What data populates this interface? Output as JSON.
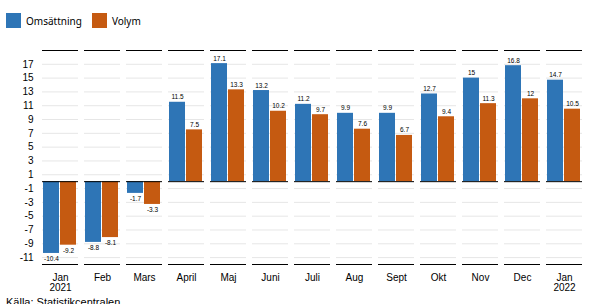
{
  "chart_data": {
    "type": "bar",
    "categories": [
      "Jan\n2021",
      "Feb",
      "Mars",
      "April",
      "Maj",
      "Juni",
      "Juli",
      "Aug",
      "Sept",
      "Okt",
      "Nov",
      "Dec",
      "Jan\n2022"
    ],
    "series": [
      {
        "name": "Omsättning",
        "color": "#2e75b6",
        "values": [
          -10.4,
          -8.8,
          -1.7,
          11.5,
          17.1,
          13.2,
          11.2,
          9.9,
          9.9,
          12.7,
          15.0,
          16.8,
          14.7
        ]
      },
      {
        "name": "Volym",
        "color": "#c55a11",
        "values": [
          -9.2,
          -8.1,
          -3.3,
          7.5,
          13.3,
          10.2,
          9.7,
          7.6,
          6.7,
          9.4,
          11.3,
          12.0,
          10.5
        ]
      }
    ],
    "ylim": [
      -12,
      19
    ],
    "yticks": [
      -11,
      -9,
      -7,
      -5,
      -3,
      -1,
      1,
      3,
      5,
      7,
      9,
      11,
      13,
      15,
      17
    ],
    "grid": true,
    "legend": "top-left",
    "data_labels": true,
    "caption": "Källa: Statistikcentralen"
  }
}
